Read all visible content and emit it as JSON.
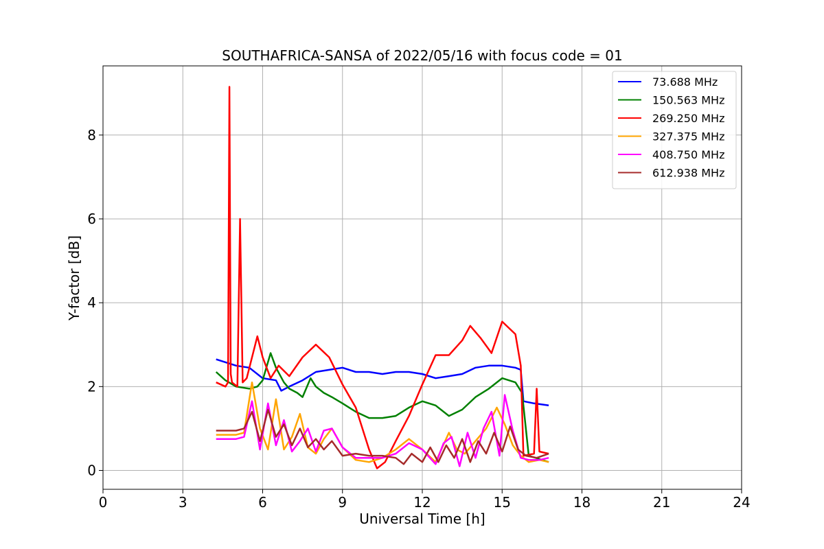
{
  "chart_data": {
    "type": "line",
    "title": "SOUTHAFRICA-SANSA of 2022/05/16 with focus code = 01",
    "xlabel": "Universal Time [h]",
    "ylabel": "Y-factor [dB]",
    "xlim": [
      0,
      24
    ],
    "ylim": [
      -0.45,
      9.65
    ],
    "xticks": [
      0,
      3,
      6,
      9,
      12,
      15,
      18,
      21,
      24
    ],
    "yticks": [
      0,
      2,
      4,
      6,
      8
    ],
    "grid": true,
    "legend_position": "top-right",
    "series": [
      {
        "name": " 73.688 MHz",
        "color": "#0000ff",
        "x": [
          4.25,
          5.0,
          5.5,
          6.0,
          6.5,
          6.7,
          7.0,
          7.5,
          8.0,
          8.5,
          9.0,
          9.5,
          10.0,
          10.5,
          11.0,
          11.5,
          12.0,
          12.5,
          13.0,
          13.5,
          14.0,
          14.5,
          15.0,
          15.5,
          15.7,
          15.8,
          16.2,
          16.75
        ],
        "y": [
          2.65,
          2.5,
          2.45,
          2.2,
          2.15,
          1.9,
          2.0,
          2.15,
          2.35,
          2.4,
          2.45,
          2.35,
          2.35,
          2.3,
          2.35,
          2.35,
          2.3,
          2.2,
          2.25,
          2.3,
          2.45,
          2.5,
          2.5,
          2.45,
          2.4,
          1.65,
          1.6,
          1.55
        ]
      },
      {
        "name": "150.563 MHz",
        "color": "#008000",
        "x": [
          4.25,
          4.6,
          5.0,
          5.5,
          5.8,
          6.0,
          6.3,
          6.5,
          6.8,
          7.0,
          7.3,
          7.5,
          7.8,
          8.0,
          8.3,
          8.6,
          9.0,
          9.5,
          10.0,
          10.5,
          11.0,
          11.5,
          12.0,
          12.5,
          13.0,
          13.5,
          14.0,
          14.5,
          15.0,
          15.5,
          15.75,
          16.0,
          16.5,
          16.75
        ],
        "y": [
          2.35,
          2.15,
          2.0,
          1.95,
          2.0,
          2.15,
          2.8,
          2.45,
          2.1,
          1.95,
          1.85,
          1.75,
          2.2,
          2.0,
          1.85,
          1.75,
          1.6,
          1.4,
          1.25,
          1.25,
          1.3,
          1.5,
          1.65,
          1.55,
          1.3,
          1.45,
          1.75,
          1.95,
          2.2,
          2.1,
          1.85,
          0.35,
          0.25,
          0.2
        ]
      },
      {
        "name": "269.250 MHz",
        "color": "#ff0000",
        "x": [
          4.25,
          4.6,
          4.7,
          4.75,
          4.8,
          4.85,
          4.95,
          5.05,
          5.15,
          5.25,
          5.4,
          5.8,
          6.0,
          6.3,
          6.6,
          7.0,
          7.5,
          8.0,
          8.5,
          9.0,
          9.5,
          10.0,
          10.3,
          10.6,
          11.0,
          11.5,
          12.0,
          12.5,
          13.0,
          13.5,
          13.8,
          14.2,
          14.6,
          15.0,
          15.5,
          15.7,
          15.8,
          16.2,
          16.3,
          16.4,
          16.75
        ],
        "y": [
          2.1,
          2.0,
          2.1,
          9.15,
          2.3,
          2.1,
          2.05,
          2.0,
          6.0,
          2.1,
          2.2,
          3.2,
          2.7,
          2.2,
          2.5,
          2.25,
          2.7,
          3.0,
          2.7,
          2.05,
          1.5,
          0.5,
          0.05,
          0.2,
          0.7,
          1.3,
          2.05,
          2.75,
          2.75,
          3.1,
          3.45,
          3.15,
          2.8,
          3.55,
          3.25,
          2.5,
          0.35,
          0.4,
          1.95,
          0.45,
          0.4
        ]
      },
      {
        "name": "327.375 MHz",
        "color": "#ffa500",
        "x": [
          4.25,
          5.0,
          5.3,
          5.6,
          5.9,
          6.2,
          6.5,
          6.8,
          7.1,
          7.4,
          7.7,
          8.0,
          8.3,
          8.6,
          9.0,
          9.5,
          10.0,
          10.5,
          11.0,
          11.5,
          12.0,
          12.5,
          13.0,
          13.3,
          13.6,
          14.0,
          14.4,
          14.8,
          15.1,
          15.4,
          15.7,
          16.0,
          16.4,
          16.75
        ],
        "y": [
          0.85,
          0.85,
          0.9,
          2.1,
          1.0,
          0.5,
          1.7,
          0.5,
          0.8,
          1.35,
          0.55,
          0.4,
          0.75,
          1.0,
          0.55,
          0.25,
          0.2,
          0.3,
          0.5,
          0.75,
          0.5,
          0.2,
          0.9,
          0.5,
          0.4,
          0.7,
          1.0,
          1.5,
          1.1,
          0.6,
          0.35,
          0.2,
          0.25,
          0.2
        ]
      },
      {
        "name": "408.750 MHz",
        "color": "#ff00ff",
        "x": [
          4.25,
          5.0,
          5.3,
          5.6,
          5.9,
          6.2,
          6.5,
          6.8,
          7.1,
          7.4,
          7.7,
          8.0,
          8.3,
          8.6,
          9.0,
          9.5,
          10.0,
          10.5,
          11.0,
          11.5,
          12.0,
          12.5,
          12.8,
          13.1,
          13.4,
          13.7,
          14.0,
          14.3,
          14.6,
          14.9,
          15.1,
          15.4,
          15.7,
          16.0,
          16.4,
          16.75
        ],
        "y": [
          0.75,
          0.75,
          0.8,
          1.65,
          0.5,
          1.6,
          0.6,
          1.2,
          0.45,
          0.7,
          1.0,
          0.45,
          0.95,
          1.0,
          0.55,
          0.3,
          0.3,
          0.3,
          0.4,
          0.65,
          0.5,
          0.15,
          0.65,
          0.8,
          0.1,
          0.9,
          0.3,
          1.0,
          1.4,
          0.35,
          1.8,
          0.95,
          0.3,
          0.25,
          0.25,
          0.3
        ]
      },
      {
        "name": "612.938 MHz",
        "color": "#a52a2a",
        "x": [
          4.25,
          5.0,
          5.3,
          5.6,
          5.9,
          6.2,
          6.5,
          6.8,
          7.1,
          7.4,
          7.7,
          8.0,
          8.3,
          8.6,
          9.0,
          9.5,
          10.0,
          10.5,
          11.0,
          11.3,
          11.6,
          12.0,
          12.3,
          12.6,
          12.9,
          13.2,
          13.5,
          13.8,
          14.1,
          14.4,
          14.7,
          15.0,
          15.3,
          15.6,
          15.9,
          16.3,
          16.75
        ],
        "y": [
          0.95,
          0.95,
          1.0,
          1.4,
          0.7,
          1.45,
          0.8,
          1.1,
          0.6,
          1.0,
          0.55,
          0.75,
          0.5,
          0.7,
          0.35,
          0.4,
          0.35,
          0.35,
          0.3,
          0.15,
          0.4,
          0.2,
          0.55,
          0.2,
          0.6,
          0.3,
          0.75,
          0.2,
          0.7,
          0.4,
          0.9,
          0.45,
          1.05,
          0.5,
          0.35,
          0.3,
          0.4
        ]
      }
    ]
  }
}
